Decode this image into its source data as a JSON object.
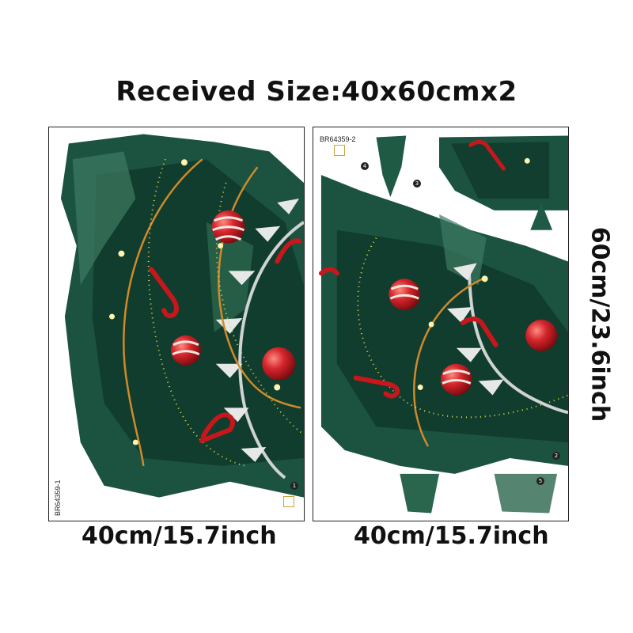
{
  "title": "Received Size:40x60cmx2",
  "sheets": [
    {
      "code": "BR64359-1",
      "width_label": "40cm/15.7inch",
      "part_numbers": [
        "1"
      ]
    },
    {
      "code": "BR64359-2",
      "width_label": "40cm/15.7inch",
      "part_numbers": [
        "2",
        "3",
        "4",
        "5"
      ]
    }
  ],
  "height_label": "60cm/23.6inch",
  "colors": {
    "pine_dark": "#0f3a2b",
    "pine_mid": "#1f5a44",
    "pine_light": "#3d7a62",
    "ornament_red": "#c8161d",
    "light_gold": "#f3c64a",
    "garland": "#b9b9b9"
  }
}
